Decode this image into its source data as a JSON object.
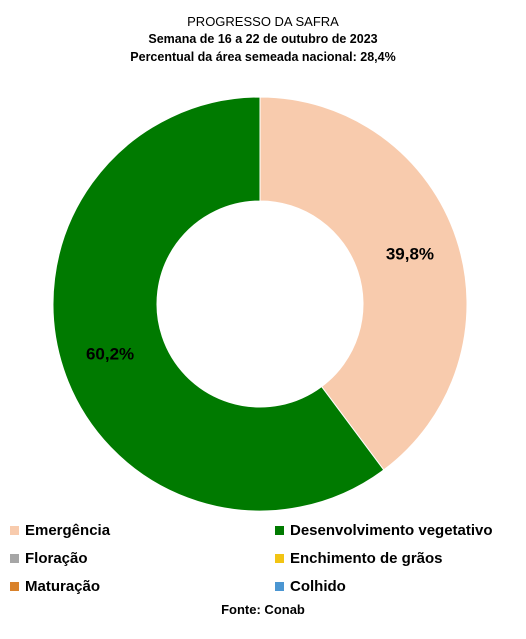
{
  "header": {
    "title": "PROGRESSO DA SAFRA",
    "subtitle_week": "Semana de 16 a 22 de outubro de 2023",
    "subtitle_area": "Percentual da área semeada nacional: 28,4%"
  },
  "chart_data": {
    "type": "donut",
    "unit": "%",
    "slices": [
      {
        "name": "Emergência",
        "value": 39.8,
        "label": "39,8%",
        "color": "#F8CBAD"
      },
      {
        "name": "Desenvolvimento vegetativo",
        "value": 60.2,
        "label": "60,2%",
        "color": "#007A00"
      }
    ],
    "legend": [
      {
        "name": "Emergência",
        "color": "#F8CBAD"
      },
      {
        "name": "Desenvolvimento vegetativo",
        "color": "#007A00"
      },
      {
        "name": "Floração",
        "color": "#A6A6A6"
      },
      {
        "name": "Enchimento de grãos",
        "color": "#F2C413"
      },
      {
        "name": "Maturação",
        "color": "#D9822B"
      },
      {
        "name": "Colhido",
        "color": "#4B96D2"
      }
    ],
    "legend_position": "bottom"
  },
  "footer": {
    "source": "Fonte: Conab"
  }
}
